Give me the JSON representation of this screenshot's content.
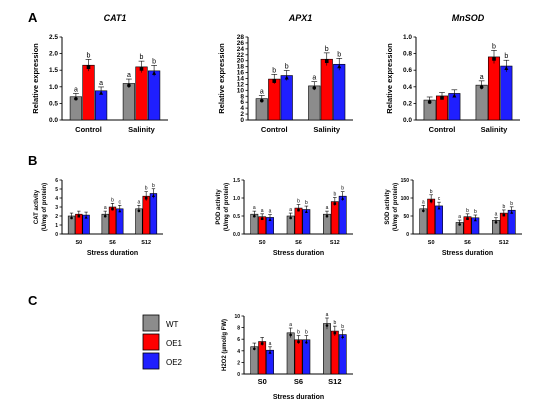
{
  "panel_letters": [
    "A",
    "B",
    "C"
  ],
  "legend": [
    {
      "label": "WT",
      "color": "#8c8c8c"
    },
    {
      "label": "OE1",
      "color": "#ff0000"
    },
    {
      "label": "OE2",
      "color": "#1f1fff"
    }
  ],
  "chart_data": [
    {
      "type": "bar",
      "title": "CAT1",
      "ylabel": "Relative expression",
      "xlabel": "",
      "categories": [
        "Control",
        "Salinity"
      ],
      "ylim": [
        0,
        2.5
      ],
      "yticks": [
        "0.0",
        "0.5",
        "1.0",
        "1.5",
        "2.0",
        "2.5"
      ],
      "series": [
        {
          "name": "WT",
          "values": [
            0.7,
            1.1
          ],
          "letters": [
            "a",
            "a"
          ]
        },
        {
          "name": "OE1",
          "values": [
            1.65,
            1.6
          ],
          "letters": [
            "b",
            "b"
          ]
        },
        {
          "name": "OE2",
          "values": [
            0.88,
            1.48
          ],
          "letters": [
            "a",
            "b"
          ]
        }
      ]
    },
    {
      "type": "bar",
      "title": "APX1",
      "ylabel": "Relative expression",
      "xlabel": "",
      "categories": [
        "Control",
        "Salinity"
      ],
      "ylim": [
        0,
        28
      ],
      "yticks": [
        "0",
        "2",
        "4",
        "6",
        "8",
        "10",
        "12",
        "14",
        "16",
        "18",
        "20",
        "22",
        "24",
        "26",
        "28"
      ],
      "series": [
        {
          "name": "WT",
          "values": [
            7.2,
            11.5
          ],
          "letters": [
            "a",
            "a"
          ]
        },
        {
          "name": "OE1",
          "values": [
            13.8,
            20.5
          ],
          "letters": [
            "b",
            "b"
          ]
        },
        {
          "name": "OE2",
          "values": [
            15.0,
            18.8
          ],
          "letters": [
            "b",
            "b"
          ]
        }
      ]
    },
    {
      "type": "bar",
      "title": "MnSOD",
      "ylabel": "Relative expression",
      "xlabel": "",
      "categories": [
        "Control",
        "Salinity"
      ],
      "ylim": [
        0,
        1.0
      ],
      "yticks": [
        "0.0",
        "0.2",
        "0.4",
        "0.6",
        "0.8",
        "1.0"
      ],
      "series": [
        {
          "name": "WT",
          "values": [
            0.24,
            0.42
          ],
          "letters": [
            "",
            "a"
          ]
        },
        {
          "name": "OE1",
          "values": [
            0.29,
            0.76
          ],
          "letters": [
            "",
            "b"
          ]
        },
        {
          "name": "OE2",
          "values": [
            0.32,
            0.65
          ],
          "letters": [
            "",
            "b"
          ]
        }
      ]
    },
    {
      "type": "bar",
      "title": "",
      "ylabel": "CAT activity|(U/mg of protein)",
      "xlabel": "Stress duration",
      "categories": [
        "S0",
        "S6",
        "S12"
      ],
      "ylim": [
        0,
        6
      ],
      "yticks": [
        "0",
        "1",
        "2",
        "3",
        "4",
        "5",
        "6"
      ],
      "series": [
        {
          "name": "WT",
          "values": [
            2.0,
            2.2,
            2.8
          ],
          "letters": [
            "",
            "a",
            "a"
          ]
        },
        {
          "name": "OE1",
          "values": [
            2.2,
            3.0,
            4.2
          ],
          "letters": [
            "",
            "b",
            "b"
          ]
        },
        {
          "name": "OE2",
          "values": [
            2.1,
            2.8,
            4.5
          ],
          "letters": [
            "",
            "c",
            "b"
          ]
        }
      ]
    },
    {
      "type": "bar",
      "title": "",
      "ylabel": "POD activity|(U/mg of protein)",
      "xlabel": "Stress duration",
      "categories": [
        "S0",
        "S6",
        "S12"
      ],
      "ylim": [
        0,
        1.5
      ],
      "yticks": [
        "0.0",
        "0.5",
        "1.0",
        "1.5"
      ],
      "series": [
        {
          "name": "WT",
          "values": [
            0.55,
            0.5,
            0.55
          ],
          "letters": [
            "a",
            "a",
            "a"
          ]
        },
        {
          "name": "OE1",
          "values": [
            0.48,
            0.72,
            0.9
          ],
          "letters": [
            "a",
            "b",
            "b"
          ]
        },
        {
          "name": "OE2",
          "values": [
            0.46,
            0.68,
            1.05
          ],
          "letters": [
            "a",
            "b",
            "b"
          ]
        }
      ]
    },
    {
      "type": "bar",
      "title": "",
      "ylabel": "SOD activity|(U/mg of protein)",
      "xlabel": "Stress duration",
      "categories": [
        "S0",
        "S6",
        "S12"
      ],
      "ylim": [
        0,
        150
      ],
      "yticks": [
        "0",
        "50",
        "100",
        "150"
      ],
      "series": [
        {
          "name": "WT",
          "values": [
            70,
            32,
            38
          ],
          "letters": [
            "a",
            "a",
            "a"
          ]
        },
        {
          "name": "OE1",
          "values": [
            97,
            48,
            58
          ],
          "letters": [
            "b",
            "b",
            "b"
          ]
        },
        {
          "name": "OE2",
          "values": [
            78,
            45,
            66
          ],
          "letters": [
            "c",
            "b",
            "b"
          ]
        }
      ]
    },
    {
      "type": "bar",
      "title": "",
      "ylabel": "H2O2 (μmol/g FW)",
      "xlabel": "Stress duration",
      "categories": [
        "S0",
        "S6",
        "S12"
      ],
      "ylim": [
        0,
        10
      ],
      "yticks": [
        "0",
        "2",
        "4",
        "6",
        "8",
        "10"
      ],
      "series": [
        {
          "name": "WT",
          "values": [
            4.7,
            7.1,
            8.7
          ],
          "letters": [
            "",
            "a",
            "a"
          ]
        },
        {
          "name": "OE1",
          "values": [
            5.6,
            5.9,
            7.4
          ],
          "letters": [
            "",
            "b",
            "b"
          ]
        },
        {
          "name": "OE2",
          "values": [
            4.1,
            5.9,
            6.8
          ],
          "letters": [
            "a",
            "b",
            "b"
          ]
        }
      ]
    }
  ]
}
